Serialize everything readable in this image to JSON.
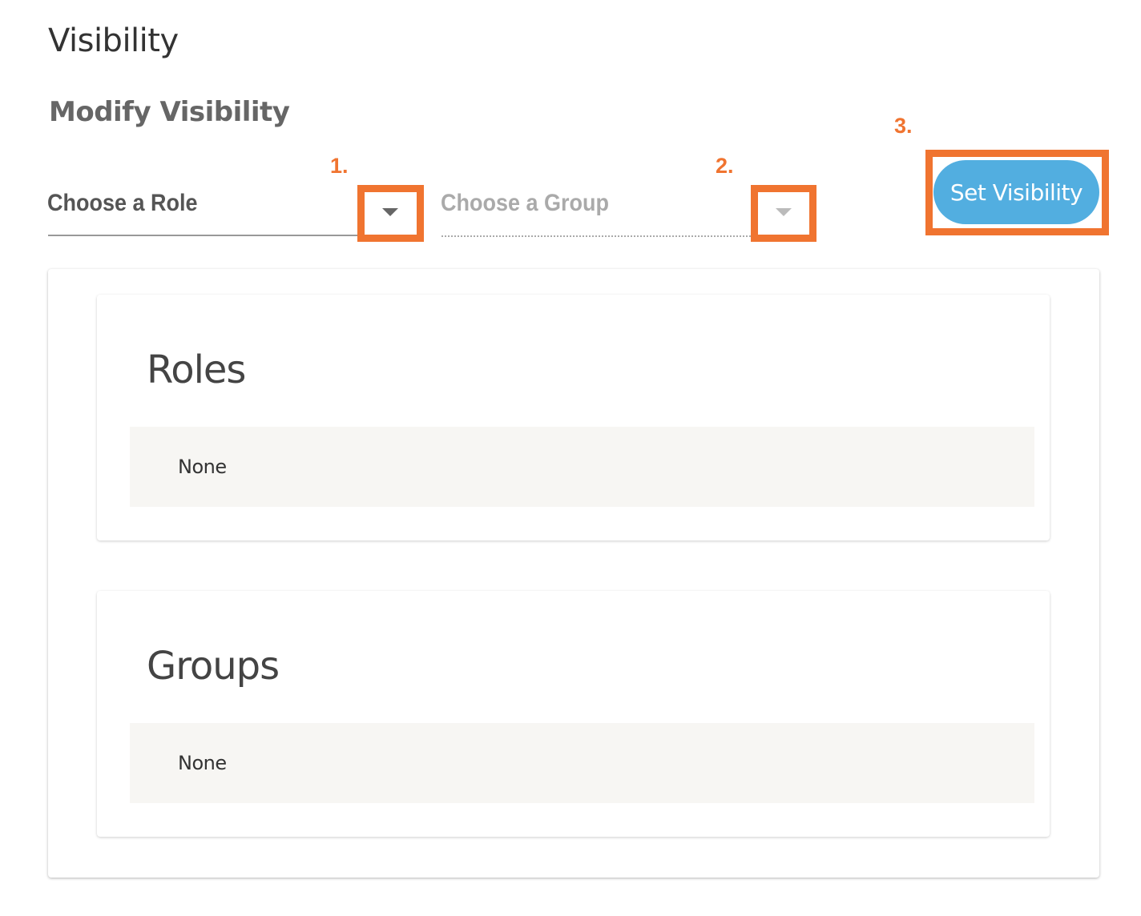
{
  "page": {
    "title": "Visibility",
    "subtitle": "Modify Visibility"
  },
  "role_select": {
    "placeholder": "Choose a Role",
    "icon": "caret-down-icon"
  },
  "group_select": {
    "placeholder": "Choose a Group",
    "icon": "caret-down-icon"
  },
  "set_button": {
    "label": "Set Visibility"
  },
  "annotations": {
    "step1": "1.",
    "step2": "2.",
    "step3": "3.",
    "color": "#f07430"
  },
  "colors": {
    "button": "#52aee0",
    "item_background": "#f7f6f3"
  },
  "roles": {
    "title": "Roles",
    "value": "None"
  },
  "groups": {
    "title": "Groups",
    "value": "None"
  }
}
